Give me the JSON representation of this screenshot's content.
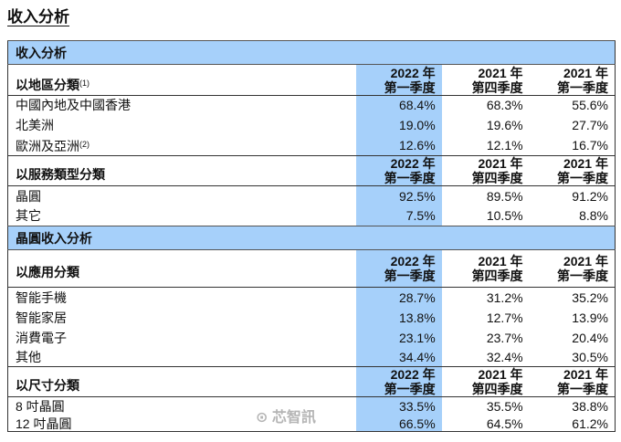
{
  "page_title": "收入分析",
  "columns": [
    {
      "year": "2022 年",
      "quarter": "第一季度"
    },
    {
      "year": "2021 年",
      "quarter": "第四季度"
    },
    {
      "year": "2021 年",
      "quarter": "第一季度"
    }
  ],
  "highlight_color": "#a6d0fa",
  "sections": [
    {
      "title": "收入分析",
      "groups": [
        {
          "label": "以地區分類",
          "note": "(1)",
          "rows": [
            {
              "label": "中國內地及中國香港",
              "note": "",
              "values": [
                "68.4%",
                "68.3%",
                "55.6%"
              ]
            },
            {
              "label": "北美洲",
              "note": "",
              "values": [
                "19.0%",
                "19.6%",
                "27.7%"
              ]
            },
            {
              "label": "歐洲及亞洲",
              "note": "(2)",
              "values": [
                "12.6%",
                "12.1%",
                "16.7%"
              ]
            }
          ]
        },
        {
          "label": "以服務類型分類",
          "note": "",
          "rows": [
            {
              "label": "晶圓",
              "note": "",
              "values": [
                "92.5%",
                "89.5%",
                "91.2%"
              ]
            },
            {
              "label": "其它",
              "note": "",
              "values": [
                "7.5%",
                "10.5%",
                "8.8%"
              ]
            }
          ]
        }
      ]
    },
    {
      "title": "晶圓收入分析",
      "groups": [
        {
          "label": "以應用分類",
          "note": "",
          "rows": [
            {
              "label": "智能手機",
              "note": "",
              "values": [
                "28.7%",
                "31.2%",
                "35.2%"
              ]
            },
            {
              "label": "智能家居",
              "note": "",
              "values": [
                "13.8%",
                "12.7%",
                "13.9%"
              ]
            },
            {
              "label": "消費電子",
              "note": "",
              "values": [
                "23.1%",
                "23.7%",
                "20.4%"
              ]
            },
            {
              "label": "其他",
              "note": "",
              "values": [
                "34.4%",
                "32.4%",
                "30.5%"
              ]
            }
          ]
        },
        {
          "label": "以尺寸分類",
          "note": "",
          "rows": [
            {
              "label": "8 吋晶圓",
              "note": "",
              "values": [
                "33.5%",
                "35.5%",
                "38.8%"
              ]
            },
            {
              "label": "12 吋晶圓",
              "note": "",
              "values": [
                "66.5%",
                "64.5%",
                "61.2%"
              ]
            }
          ]
        }
      ]
    }
  ],
  "watermark": "芯智訊"
}
